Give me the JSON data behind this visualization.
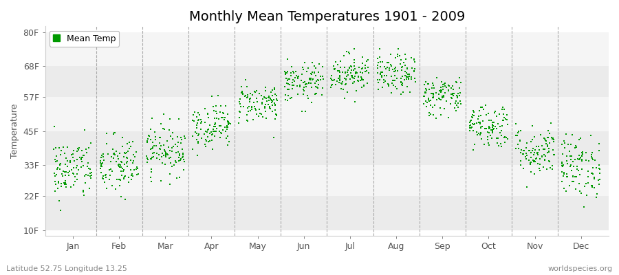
{
  "title": "Monthly Mean Temperatures 1901 - 2009",
  "ylabel": "Temperature",
  "xlabel_months": [
    "Jan",
    "Feb",
    "Mar",
    "Apr",
    "May",
    "Jun",
    "Jul",
    "Aug",
    "Sep",
    "Oct",
    "Nov",
    "Dec"
  ],
  "yticks": [
    10,
    22,
    33,
    45,
    57,
    68,
    80
  ],
  "ytick_labels": [
    "10F",
    "22F",
    "33F",
    "45F",
    "57F",
    "68F",
    "80F"
  ],
  "ylim": [
    8,
    82
  ],
  "dot_color": "#009900",
  "background_color": "#ffffff",
  "plot_bg_alt1": "#ebebeb",
  "plot_bg_alt2": "#f5f5f5",
  "legend_label": "Mean Temp",
  "footer_left": "Latitude 52.75 Longitude 13.25",
  "footer_right": "worldspecies.org",
  "title_fontsize": 14,
  "axis_label_fontsize": 9,
  "tick_fontsize": 9,
  "footer_fontsize": 8,
  "dot_size": 3,
  "years": 109,
  "monthly_means_F": [
    31.5,
    32.5,
    38.5,
    47.0,
    55.0,
    62.0,
    65.5,
    65.0,
    57.5,
    47.0,
    38.0,
    32.5
  ],
  "monthly_stds_F": [
    5.5,
    5.5,
    4.5,
    4.0,
    3.5,
    3.5,
    3.5,
    3.5,
    3.5,
    4.0,
    4.5,
    5.5
  ],
  "vline_positions": [
    1.5,
    2.5,
    3.5,
    4.5,
    5.5,
    6.5,
    7.5,
    8.5,
    9.5,
    10.5,
    11.5
  ],
  "xlim": [
    0.4,
    12.6
  ]
}
